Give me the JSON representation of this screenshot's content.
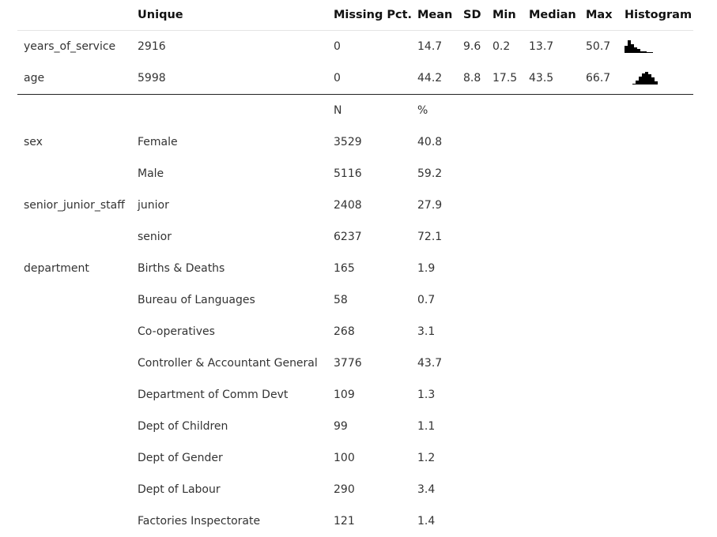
{
  "header": [
    "",
    "Unique",
    "Missing Pct.",
    "Mean",
    "SD",
    "Min",
    "Median",
    "Max",
    "Histogram"
  ],
  "numeric_rows": [
    {
      "name": "years_of_service",
      "unique": "2916",
      "missing": "0",
      "mean": "14.7",
      "sd": "9.6",
      "min": "0.2",
      "median": "13.7",
      "max": "50.7",
      "hist": [
        0.55,
        1.0,
        0.7,
        0.45,
        0.3,
        0.15,
        0.12,
        0.06,
        0.03
      ]
    },
    {
      "name": "age",
      "unique": "5998",
      "missing": "0",
      "mean": "44.2",
      "sd": "8.8",
      "min": "17.5",
      "median": "43.5",
      "max": "66.7",
      "hist": [
        0.08,
        0.3,
        0.6,
        0.85,
        1.0,
        0.8,
        0.55,
        0.25
      ]
    }
  ],
  "categorical_header": {
    "n": "N",
    "pct": "%"
  },
  "categorical_rows": [
    {
      "var": "sex",
      "level": "Female",
      "n": "3529",
      "pct": "40.8"
    },
    {
      "var": "",
      "level": "Male",
      "n": "5116",
      "pct": "59.2"
    },
    {
      "var": "senior_junior_staff",
      "level": "junior",
      "n": "2408",
      "pct": "27.9"
    },
    {
      "var": "",
      "level": "senior",
      "n": "6237",
      "pct": "72.1"
    },
    {
      "var": "department",
      "level": "Births & Deaths",
      "n": "165",
      "pct": "1.9"
    },
    {
      "var": "",
      "level": "Bureau of Languages",
      "n": "58",
      "pct": "0.7"
    },
    {
      "var": "",
      "level": "Co-operatives",
      "n": "268",
      "pct": "3.1"
    },
    {
      "var": "",
      "level": "Controller & Accountant General",
      "n": "3776",
      "pct": "43.7"
    },
    {
      "var": "",
      "level": "Department of Comm Devt",
      "n": "109",
      "pct": "1.3"
    },
    {
      "var": "",
      "level": "Dept of Children",
      "n": "99",
      "pct": "1.1"
    },
    {
      "var": "",
      "level": "Dept of Gender",
      "n": "100",
      "pct": "1.2"
    },
    {
      "var": "",
      "level": "Dept of Labour",
      "n": "290",
      "pct": "3.4"
    },
    {
      "var": "",
      "level": "Factories Inspectorate",
      "n": "121",
      "pct": "1.4"
    }
  ]
}
